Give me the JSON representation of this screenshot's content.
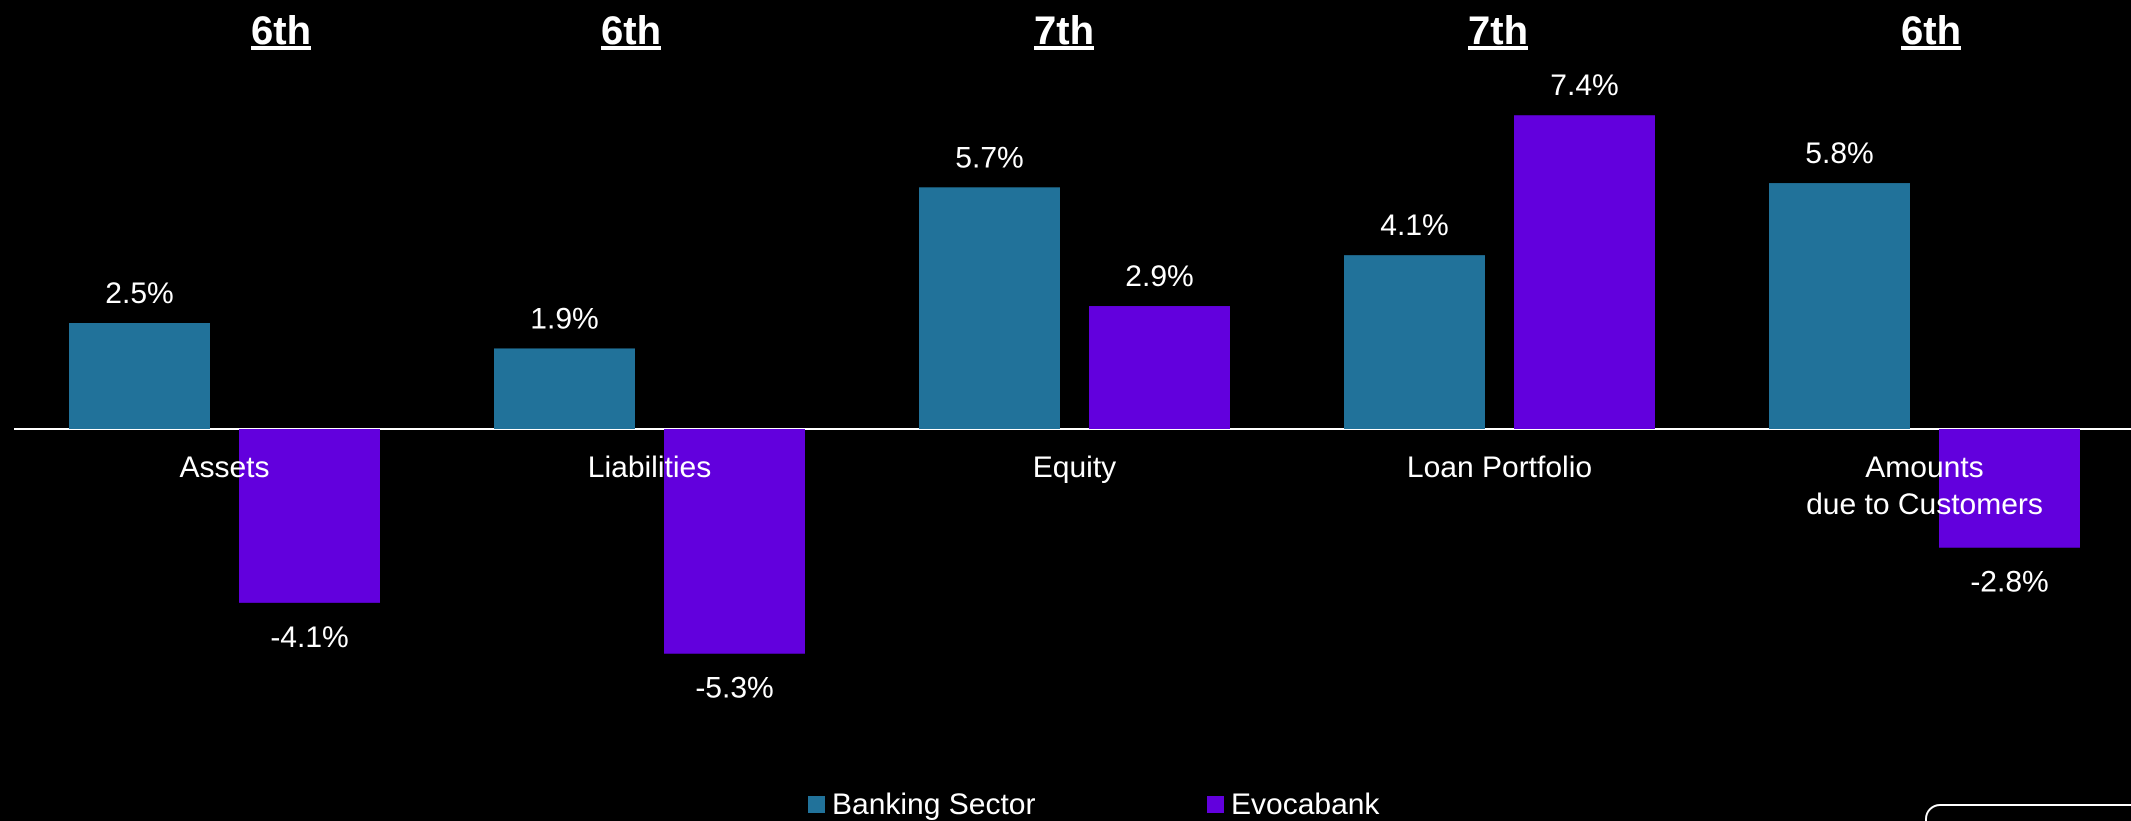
{
  "chart_data": {
    "type": "bar",
    "categories": [
      "Assets",
      "Liabilities",
      "Equity",
      "Loan Portfolio",
      "Amounts\ndue to Customers"
    ],
    "ranks": [
      "6th",
      "6th",
      "7th",
      "7th",
      "6th"
    ],
    "series": [
      {
        "name": "Banking Sector",
        "color": "#21729a",
        "values": [
          2.5,
          1.9,
          5.7,
          4.1,
          5.8
        ],
        "value_labels": [
          "2.5%",
          "1.9%",
          "5.7%",
          "4.1%",
          "5.8%"
        ]
      },
      {
        "name": "Evocabank",
        "color": "#6200dd",
        "values": [
          -4.1,
          -5.3,
          2.9,
          7.4,
          -2.8
        ],
        "value_labels": [
          "-4.1%",
          "-5.3%",
          "2.9%",
          "7.4%",
          "-2.8%"
        ]
      }
    ],
    "legend": "bottom"
  }
}
